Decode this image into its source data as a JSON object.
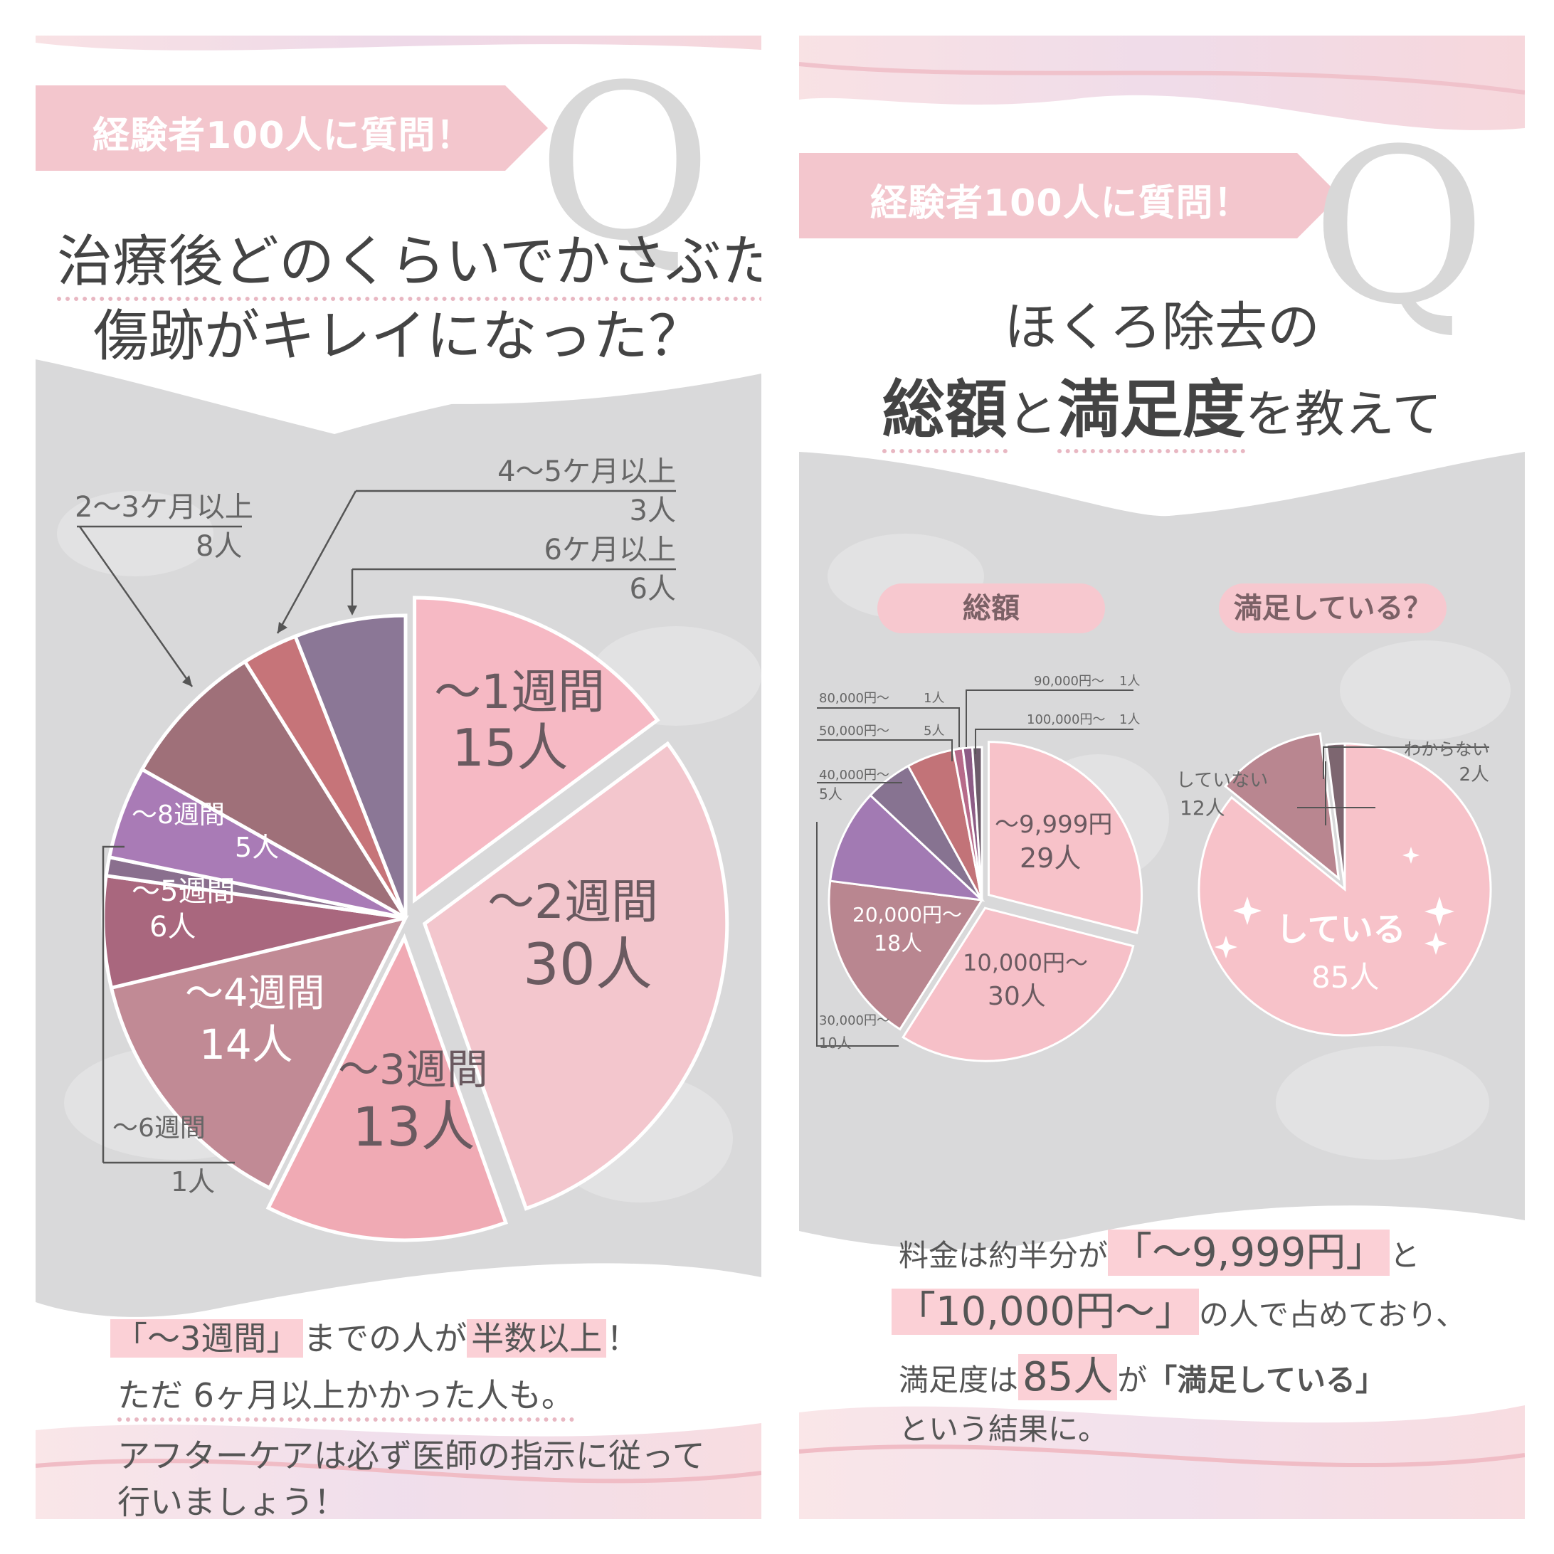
{
  "colors": {
    "banner": "#f3c6cd",
    "gray_band": "#d9d9da",
    "highlight": "#fbd0d6",
    "leader_line": "#555555"
  },
  "left": {
    "banner": "経験者100人に質問！",
    "q_letter": "Q",
    "title_line1": "治療後どのくらいでかさぶたや",
    "title_line2": "傷跡がキレイになった？",
    "summary": {
      "l1_hl1": "「〜3週間」",
      "l1_mid": "までの人が",
      "l1_hl2": "半数以上",
      "l1_end": "！",
      "l2": "ただ 6ヶ月以上かかった人も。",
      "l3": "アフターケアは必ず医師の指示に従って",
      "l4": "行いましょう！"
    }
  },
  "right": {
    "banner": "経験者100人に質問！",
    "q_letter": "Q",
    "title_line1": "ほくろ除去の",
    "title_w1": "総額",
    "title_w2": "と",
    "title_w3": "満足度",
    "title_w4": "を教えて",
    "pill_total": "総額",
    "pill_satisfied": "満足している？",
    "summary": {
      "l1_a": "料金は約半分が",
      "l1_hl": "「〜9,999円」",
      "l1_b": "と",
      "l2_hl": "「10,000円〜」",
      "l2_b": "の人で占めており、",
      "l3_a": "満足度は",
      "l3_hl": "85人",
      "l3_b": "が",
      "l3_c": "「満足している」",
      "l4": "という結果に。"
    }
  },
  "chart_data": [
    {
      "type": "pie",
      "title": "治療後どのくらいでかさぶたや傷跡がキレイになった？",
      "unit": "人",
      "slices": [
        {
          "label": "〜1週間",
          "value": 15,
          "value_text": "15人",
          "color": "#f6b9c4"
        },
        {
          "label": "〜2週間",
          "value": 30,
          "value_text": "30人",
          "color": "#f3c6cd"
        },
        {
          "label": "〜3週間",
          "value": 13,
          "value_text": "13人",
          "color": "#f0aab4"
        },
        {
          "label": "〜4週間",
          "value": 14,
          "value_text": "14人",
          "color": "#c18a95"
        },
        {
          "label": "〜5週間",
          "value": 6,
          "value_text": "6人",
          "color": "#a9677e"
        },
        {
          "label": "〜6週間",
          "value": 1,
          "value_text": "1人",
          "color": "#8a6f8e"
        },
        {
          "label": "〜8週間",
          "value": 5,
          "value_text": "5人",
          "color": "#a97bb6"
        },
        {
          "label": "2〜3ケ月以上",
          "value": 8,
          "value_text": "8人",
          "color": "#9f7079"
        },
        {
          "label": "4〜5ケ月以上",
          "value": 3,
          "value_text": "3人",
          "color": "#c67479"
        },
        {
          "label": "6ケ月以上",
          "value": 6,
          "value_text": "6人",
          "color": "#8b7796"
        }
      ]
    },
    {
      "type": "pie",
      "title": "総額",
      "unit": "人",
      "slices": [
        {
          "label": "〜9,999円",
          "value": 29,
          "value_text": "29人",
          "color": "#f7c2c9"
        },
        {
          "label": "10,000円〜",
          "value": 30,
          "value_text": "30人",
          "color": "#f6c0c8"
        },
        {
          "label": "20,000円〜",
          "value": 18,
          "value_text": "18人",
          "color": "#b98690"
        },
        {
          "label": "30,000円〜",
          "value": 10,
          "value_text": "10人",
          "color": "#a27ab3"
        },
        {
          "label": "40,000円〜",
          "value": 5,
          "value_text": "5人",
          "color": "#877391"
        },
        {
          "label": "50,000円〜",
          "value": 5,
          "value_text": "5人",
          "color": "#c27378"
        },
        {
          "label": "80,000円〜",
          "value": 1,
          "value_text": "1人",
          "color": "#b76a8a"
        },
        {
          "label": "90,000円〜",
          "value": 1,
          "value_text": "1人",
          "color": "#8d5c86"
        },
        {
          "label": "100,000円〜",
          "value": 1,
          "value_text": "1人",
          "color": "#6d5c6b"
        }
      ]
    },
    {
      "type": "pie",
      "title": "満足している？",
      "unit": "人",
      "slices": [
        {
          "label": "している",
          "value": 85,
          "value_text": "85人",
          "color": "#f7c2c9"
        },
        {
          "label": "していない",
          "value": 12,
          "value_text": "12人",
          "color": "#b98690"
        },
        {
          "label": "わからない",
          "value": 2,
          "value_text": "2人",
          "color": "#7d6670"
        }
      ]
    }
  ]
}
